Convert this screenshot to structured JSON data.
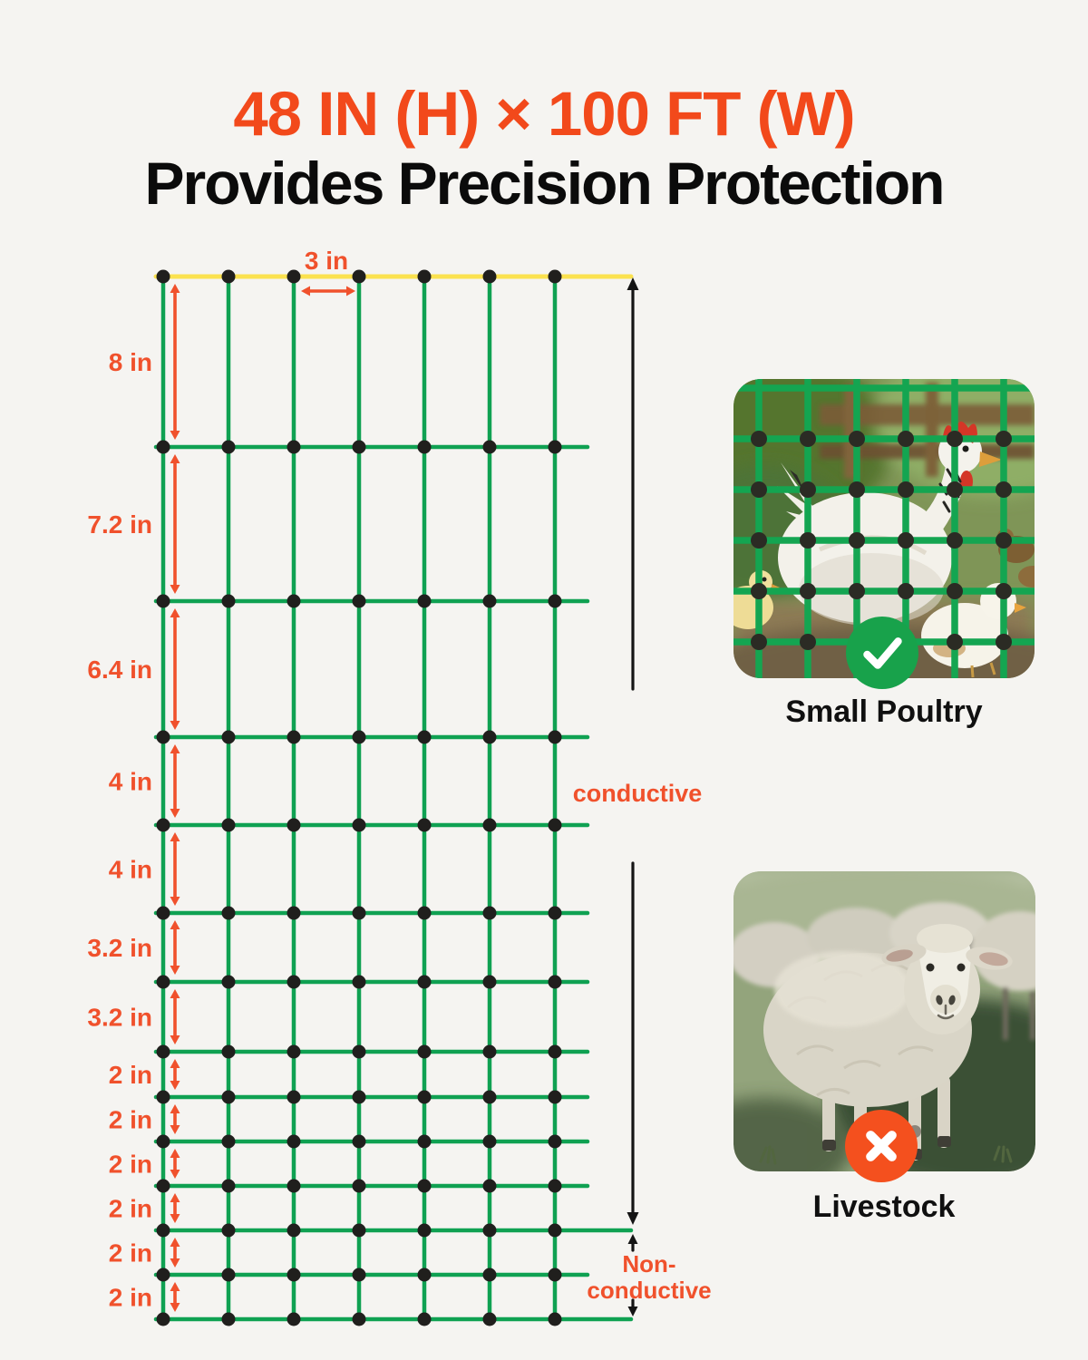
{
  "title": {
    "line1": "48 IN (H) × 100 FT (W)",
    "line2": "Provides Precision Protection"
  },
  "diagram": {
    "mesh_width_label": "3 in",
    "row_gap_labels": [
      "8 in",
      "7.2 in",
      "6.4 in",
      "4 in",
      "4 in",
      "3.2 in",
      "3.2 in",
      "2 in",
      "2 in",
      "2 in",
      "2 in",
      "2 in",
      "2 in"
    ],
    "conductive_label": "conductive",
    "nonconductive_label": "Non-conductive",
    "net_columns": 7,
    "net_rows": 14,
    "total_height": "48 in",
    "total_width": "100 ft"
  },
  "cards": {
    "poultry": {
      "label": "Small Poultry",
      "badge": "check-icon"
    },
    "livestock": {
      "label": "Livestock",
      "badge": "cross-icon"
    }
  },
  "colors": {
    "accent_orange": "#f2491b",
    "dimension_orange": "#f0512c",
    "net_green": "#0fa152",
    "top_strand_yellow": "#fbe24f",
    "knot_black": "#201f1d",
    "black_arrow": "#141414",
    "badge_green": "#18a24b",
    "badge_orange": "#f4501e",
    "background": "#f5f4f1",
    "text_black": "#0b0b0b"
  }
}
